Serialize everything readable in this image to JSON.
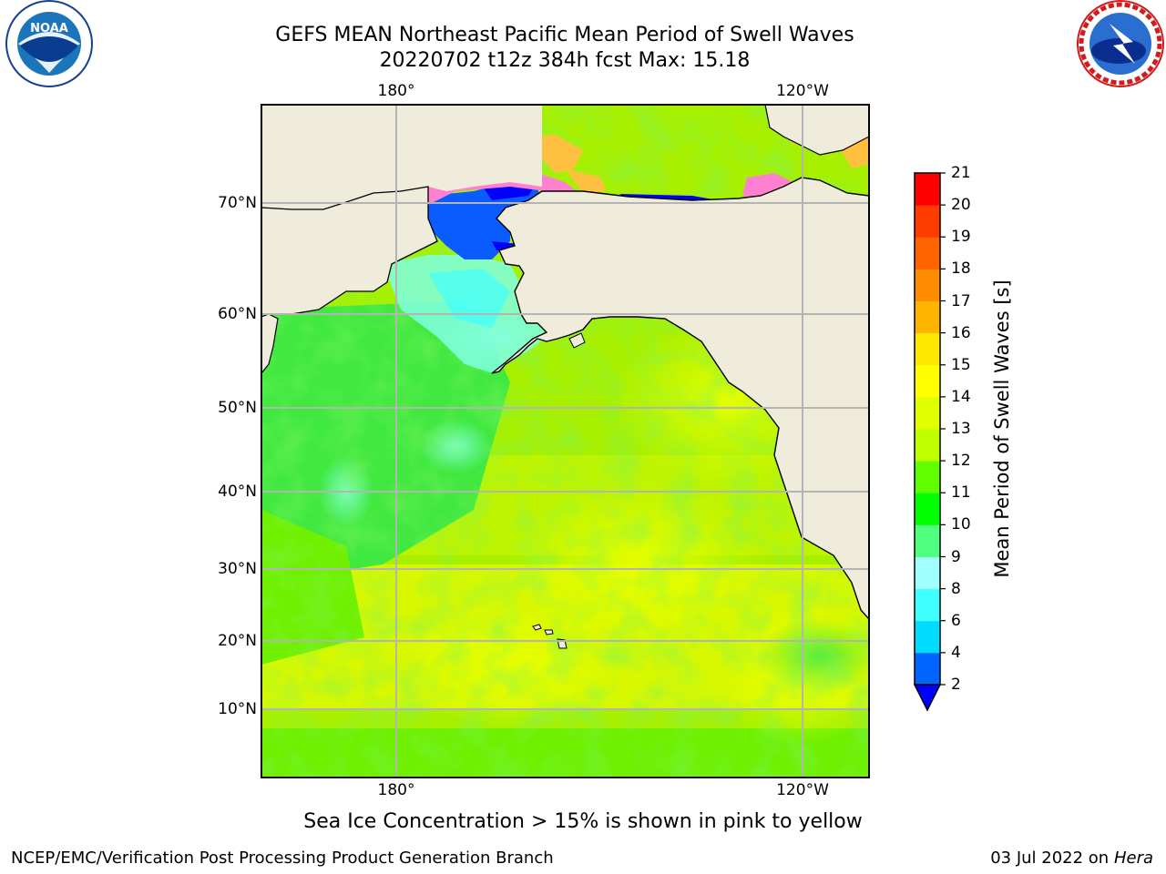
{
  "chart_data": {
    "type": "heatmap",
    "title": "GEFS MEAN Northeast Pacific Mean Period of Swell Waves",
    "subtitle": "20220702 t12z 384h fcst   Max: 15.18",
    "x_axis": {
      "ticks": [
        "180°",
        "120°W"
      ]
    },
    "y_axis": {
      "ticks": [
        "70°N",
        "60°N",
        "50°N",
        "40°N",
        "30°N",
        "20°N",
        "10°N"
      ]
    },
    "grid": true,
    "colorbar": {
      "label": "Mean Period of Swell Waves [s]",
      "tick_labels": [
        "2",
        "4",
        "6",
        "8",
        "9",
        "10",
        "11",
        "12",
        "13",
        "14",
        "15",
        "16",
        "17",
        "18",
        "19",
        "20",
        "21"
      ],
      "colors": [
        "#0064ff",
        "#00dcff",
        "#40ffff",
        "#a0ffff",
        "#50ff80",
        "#00ff00",
        "#60ff00",
        "#c0ff00",
        "#e0ff00",
        "#ffff00",
        "#ffe800",
        "#ffb400",
        "#ff8c00",
        "#ff6400",
        "#ff3c00",
        "#ff0000"
      ],
      "extend_min_color": "#0000ff",
      "placement": "right"
    },
    "max_value": 15.18,
    "annotation": "Sea Ice Concentration > 15% is shown in pink to yellow"
  },
  "footer": {
    "left": "NCEP/EMC/Verification Post Processing Product Generation Branch",
    "right_prefix": "03 Jul 2022 on ",
    "right_host": "Hera"
  },
  "logos": {
    "left": "NOAA",
    "right": "NATIONAL WEATHER SERVICE"
  },
  "colors": {
    "land": "#efecdc",
    "grid": "#b4b4b4",
    "ice_pink": "#ff80d0",
    "ice_orange": "#ffc040"
  }
}
